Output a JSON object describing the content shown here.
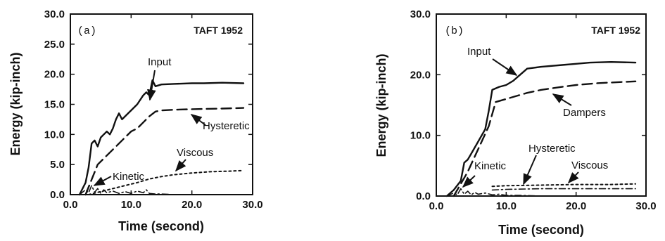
{
  "chart_data": [
    {
      "type": "line",
      "panel_label": "(a)",
      "title": "TAFT 1952",
      "xlabel": "Time (second)",
      "ylabel": "Energy (kip-inch)",
      "xlim": [
        0,
        30
      ],
      "ylim": [
        0,
        30
      ],
      "x_ticks": [
        "0.0",
        "10.0",
        "20.0",
        "30.0"
      ],
      "y_ticks": [
        "0.0",
        "5.0",
        "10.0",
        "15.0",
        "20.0",
        "25.0",
        "30.0"
      ],
      "grid": false,
      "series": [
        {
          "name": "Input",
          "style": "solid",
          "x": [
            1.5,
            2.5,
            3.0,
            3.5,
            4.0,
            4.5,
            5.0,
            5.5,
            6.0,
            6.5,
            7.0,
            7.5,
            8.0,
            8.5,
            9.0,
            10.0,
            11.0,
            12.0,
            12.5,
            13.0,
            13.5,
            14.0,
            15.0,
            17.0,
            20.0,
            22.0,
            25.0,
            28.5
          ],
          "y": [
            0.0,
            2.0,
            4.5,
            8.5,
            9.0,
            8.0,
            9.5,
            10.0,
            10.5,
            10.0,
            11.0,
            12.5,
            13.5,
            12.5,
            13.0,
            14.0,
            15.0,
            16.5,
            17.0,
            16.5,
            19.0,
            18.0,
            18.3,
            18.4,
            18.5,
            18.5,
            18.6,
            18.5
          ]
        },
        {
          "name": "Hysteretic",
          "style": "dashed",
          "x": [
            2.5,
            3.5,
            4.5,
            6.0,
            7.0,
            8.0,
            9.0,
            10.0,
            11.0,
            12.0,
            13.0,
            14.0,
            15.0,
            17.0,
            20.0,
            25.0,
            28.5
          ],
          "y": [
            0.0,
            2.5,
            5.0,
            6.5,
            7.5,
            8.5,
            9.5,
            10.5,
            11.0,
            12.0,
            13.0,
            13.8,
            14.0,
            14.1,
            14.2,
            14.3,
            14.4
          ]
        },
        {
          "name": "Viscous",
          "style": "dotted",
          "x": [
            3.0,
            5.0,
            7.0,
            9.0,
            11.0,
            13.0,
            15.0,
            17.0,
            20.0,
            23.0,
            26.0,
            28.5
          ],
          "y": [
            0.0,
            0.5,
            1.0,
            1.5,
            2.0,
            2.6,
            3.0,
            3.3,
            3.6,
            3.8,
            3.9,
            4.0
          ]
        },
        {
          "name": "Kinetic",
          "style": "dashdot",
          "x": [
            1.5,
            2.5,
            3.0,
            3.5,
            4.0,
            4.5,
            5.0,
            5.5,
            6.0,
            7.0,
            8.0,
            9.0,
            10.0,
            11.0,
            12.0,
            12.5,
            13.0,
            14.0,
            15.0,
            17.0,
            20.0,
            25.0,
            28.5
          ],
          "y": [
            0.0,
            0.8,
            0.3,
            1.5,
            0.4,
            1.0,
            0.2,
            0.8,
            0.3,
            0.6,
            0.2,
            0.5,
            0.2,
            0.6,
            0.3,
            0.8,
            0.2,
            0.1,
            0.1,
            0.0,
            0.0,
            0.0,
            0.0
          ]
        }
      ],
      "annotations": [
        "Input",
        "Hysteretic",
        "Viscous",
        "Kinetic"
      ]
    },
    {
      "type": "line",
      "panel_label": "(b)",
      "title": "TAFT 1952",
      "xlabel": "Time (second)",
      "ylabel": "Energy (kip-inch)",
      "xlim": [
        0,
        30
      ],
      "ylim": [
        0,
        30
      ],
      "x_ticks": [
        "0.0",
        "10.0",
        "20.0",
        "30.0"
      ],
      "y_ticks": [
        "0.0",
        "10.0",
        "20.0",
        "30.0"
      ],
      "grid": false,
      "series": [
        {
          "name": "Input",
          "style": "solid",
          "x": [
            1.5,
            2.5,
            3.5,
            4.0,
            4.5,
            5.0,
            6.0,
            7.0,
            7.5,
            8.0,
            9.0,
            10.0,
            11.0,
            12.0,
            13.0,
            15.0,
            18.0,
            20.0,
            22.0,
            25.0,
            28.5
          ],
          "y": [
            0.0,
            1.0,
            2.5,
            5.5,
            6.0,
            7.0,
            9.0,
            11.0,
            14.0,
            17.5,
            18.0,
            18.3,
            19.0,
            20.0,
            21.0,
            21.3,
            21.6,
            21.8,
            22.0,
            22.1,
            22.0
          ]
        },
        {
          "name": "Dampers",
          "style": "dashed",
          "x": [
            2.5,
            3.5,
            4.5,
            5.5,
            6.5,
            7.5,
            8.5,
            10.0,
            11.5,
            13.0,
            15.0,
            18.0,
            20.0,
            23.0,
            28.5
          ],
          "y": [
            0.0,
            2.0,
            4.0,
            6.5,
            9.0,
            11.5,
            15.5,
            16.0,
            16.5,
            17.0,
            17.5,
            18.0,
            18.3,
            18.6,
            18.9
          ]
        },
        {
          "name": "Hysteretic",
          "style": "dashdot",
          "x": [
            8.0,
            10.0,
            15.0,
            20.0,
            25.0,
            28.5
          ],
          "y": [
            1.0,
            1.1,
            1.2,
            1.2,
            1.2,
            1.2
          ]
        },
        {
          "name": "Viscous",
          "style": "dotted",
          "x": [
            8.0,
            10.0,
            15.0,
            20.0,
            25.0,
            28.5
          ],
          "y": [
            1.6,
            1.7,
            1.8,
            1.9,
            1.9,
            2.0
          ]
        },
        {
          "name": "Kinetic",
          "style": "dashdot",
          "x": [
            1.5,
            2.5,
            3.0,
            3.5,
            4.0,
            4.5,
            5.0,
            5.5,
            6.0,
            7.0,
            8.0,
            9.0,
            10.0,
            12.0,
            15.0,
            20.0,
            28.5
          ],
          "y": [
            0.0,
            0.5,
            0.2,
            1.2,
            0.3,
            0.8,
            0.2,
            0.6,
            0.3,
            0.5,
            0.2,
            0.3,
            0.1,
            0.1,
            0.0,
            0.0,
            0.0
          ]
        }
      ],
      "annotations": [
        "Input",
        "Dampers",
        "Hysteretic",
        "Viscous",
        "Kinetic"
      ]
    }
  ]
}
